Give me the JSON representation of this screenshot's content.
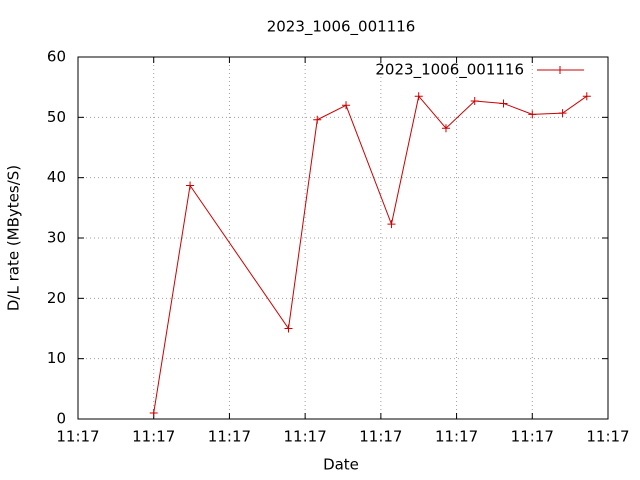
{
  "chart_data": {
    "type": "line",
    "title": "2023_1006_001116",
    "x_label": "Date",
    "y_label": "D/L rate (MBytes/S)",
    "x": [
      5.0,
      7.4,
      13.9,
      15.8,
      17.7,
      20.7,
      22.5,
      24.3,
      26.2,
      28.1,
      30.0,
      32.0,
      33.6
    ],
    "series": [
      {
        "name": "2023_1006_001116",
        "color": "#cc0000",
        "values": [
          1,
          38.7,
          15,
          49.6,
          52,
          32.3,
          53.5,
          48.2,
          52.7,
          52.3,
          50.5,
          50.7,
          53.5
        ]
      }
    ],
    "xlim": [
      0,
      35
    ],
    "xticks": [
      {
        "value": 0,
        "label": "11:17"
      },
      {
        "value": 5,
        "label": "11:17"
      },
      {
        "value": 10,
        "label": "11:17"
      },
      {
        "value": 15,
        "label": "11:17"
      },
      {
        "value": 20,
        "label": "11:17"
      },
      {
        "value": 25,
        "label": "11:17"
      },
      {
        "value": 30,
        "label": "11:17"
      },
      {
        "value": 35,
        "label": "11:17"
      }
    ],
    "ylim": [
      0,
      60
    ],
    "yticks": [
      0,
      10,
      20,
      30,
      40,
      50,
      60
    ],
    "grid": true,
    "legend": "top-right"
  }
}
